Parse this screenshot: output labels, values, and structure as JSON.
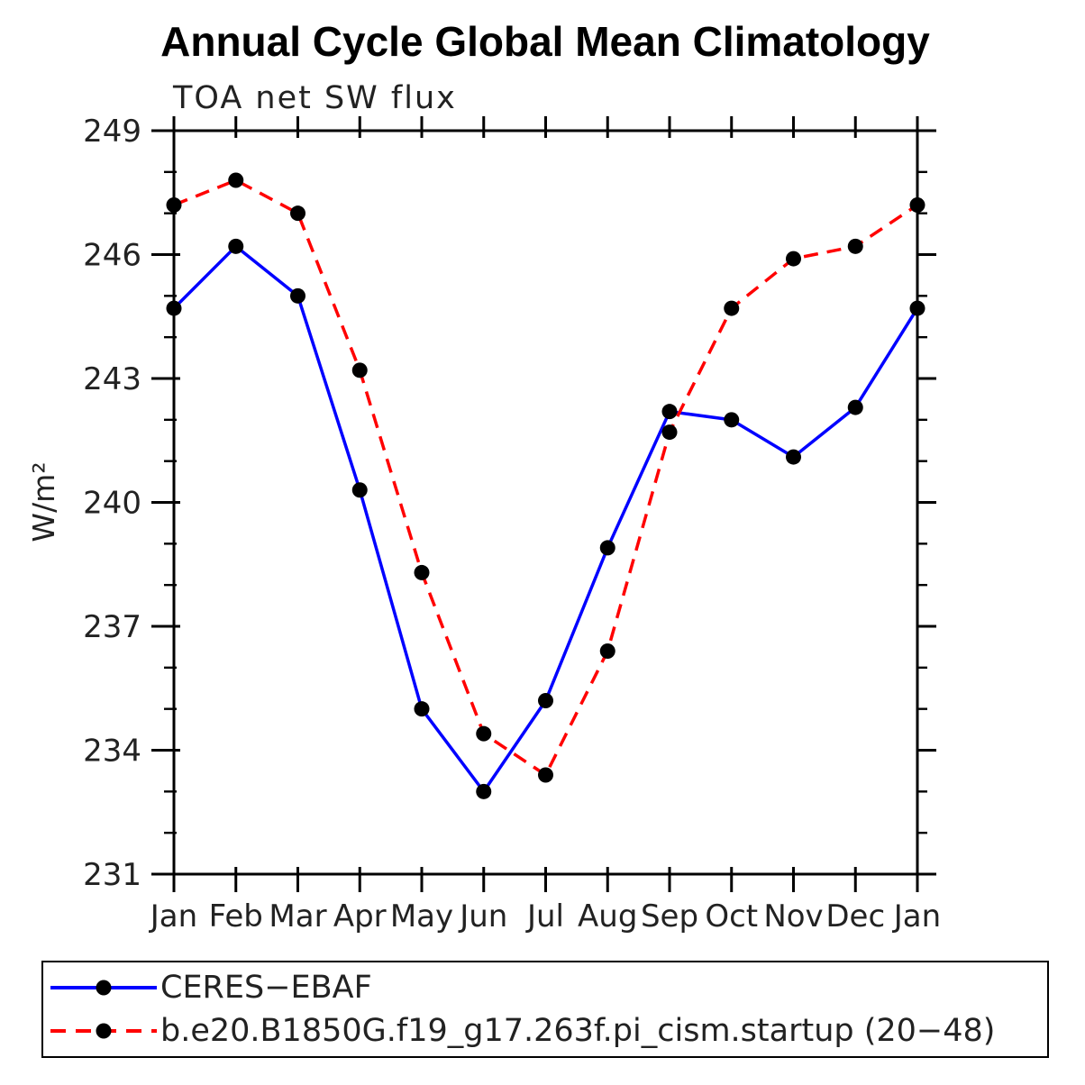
{
  "title": "Annual Cycle Global Mean Climatology",
  "chart_data": {
    "type": "line",
    "subtitle": "TOA net SW flux",
    "xlabel": "",
    "ylabel": "W/m²",
    "categories": [
      "Jan",
      "Feb",
      "Mar",
      "Apr",
      "May",
      "Jun",
      "Jul",
      "Aug",
      "Sep",
      "Oct",
      "Nov",
      "Dec",
      "Jan"
    ],
    "ylim": [
      231,
      249
    ],
    "yticks": [
      231,
      234,
      237,
      240,
      243,
      246,
      249
    ],
    "ytick_interval": 3,
    "ytick_minor_interval": 1,
    "grid": false,
    "legend_position": "bottom",
    "frame_color": "#000000",
    "series": [
      {
        "name": "CERES−EBAF",
        "color": "#0000ff",
        "style": "solid",
        "marker": "filled-circle",
        "marker_color": "#000000",
        "values": [
          244.7,
          246.2,
          245.0,
          240.3,
          235.0,
          233.0,
          235.2,
          238.9,
          242.2,
          242.0,
          241.1,
          242.3,
          244.7
        ]
      },
      {
        "name": "b.e20.B1850G.f19_g17.263f.pi_cism.startup (20−48)",
        "color": "#ff0000",
        "style": "dashed",
        "marker": "filled-circle",
        "marker_color": "#000000",
        "values": [
          247.2,
          247.8,
          247.0,
          243.2,
          238.3,
          234.4,
          233.4,
          236.4,
          241.7,
          244.7,
          245.9,
          246.2,
          247.2
        ]
      }
    ]
  }
}
